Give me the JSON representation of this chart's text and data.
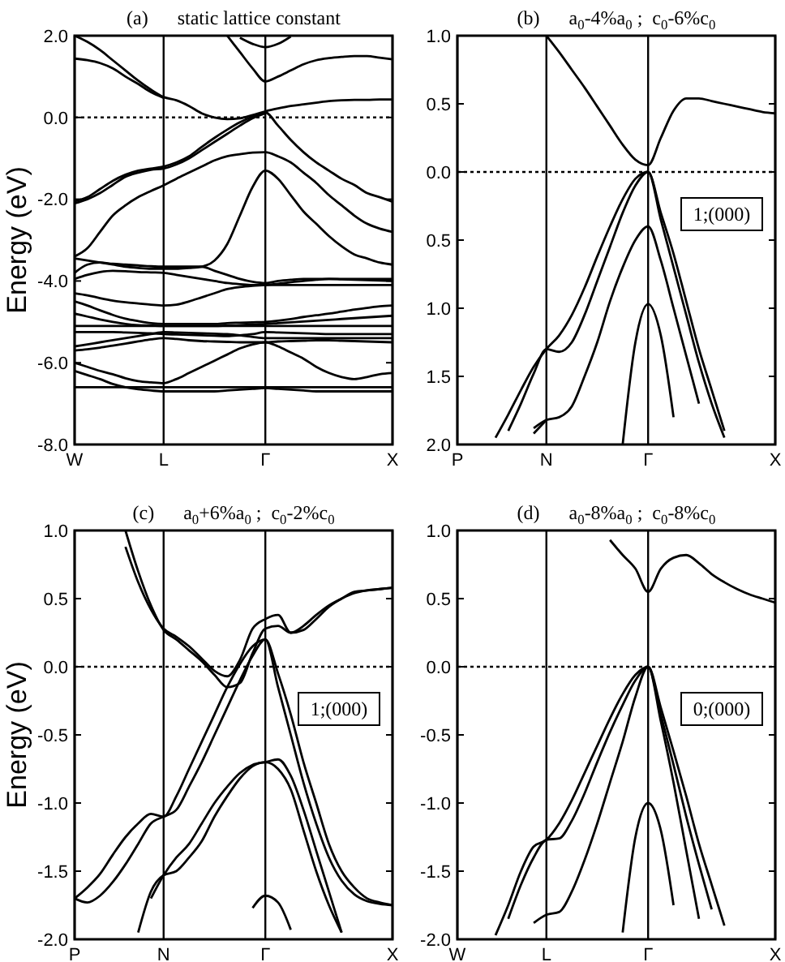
{
  "chart_data": [
    {
      "type": "line",
      "title": "(a)      static lattice constant",
      "ylabel": "Energy (eV)",
      "grid": "x",
      "categories": [
        "W",
        null,
        null,
        null,
        null,
        null,
        null,
        "L",
        null,
        null,
        null,
        null,
        null,
        null,
        null,
        "Γ",
        null,
        null,
        null,
        null,
        null,
        null,
        null,
        null,
        null,
        "X"
      ],
      "ylim": [
        -8,
        2
      ],
      "yticks": [
        {
          "value": 2,
          "label": "2.0"
        },
        {
          "value": 0,
          "label": "0.0"
        },
        {
          "value": -2,
          "label": "-2.0"
        },
        {
          "value": -4,
          "label": "-4.0"
        },
        {
          "value": -6,
          "label": "-6.0"
        },
        {
          "value": -8,
          "label": "-8.0"
        }
      ],
      "ref_lines": [
        {
          "axis": "y",
          "value": 0,
          "color": "#000000",
          "line_style": "dotted"
        }
      ],
      "series": [
        {
          "color": "#000000",
          "values": [
            2.0,
            1.85,
            1.65,
            1.4,
            1.15,
            0.9,
            0.68,
            0.5,
            0.42,
            0.28,
            0.1,
            0.0,
            -0.04,
            -0.02,
            0.06,
            0.15,
            0.22,
            0.28,
            0.32,
            0.36,
            0.4,
            0.42,
            0.43,
            0.43,
            0.44,
            0.44
          ]
        },
        {
          "color": "#000000",
          "values": [
            1.44,
            1.4,
            1.33,
            1.2,
            1.0,
            0.82,
            0.62,
            0.48,
            null,
            null,
            null,
            null,
            null,
            null,
            null,
            null,
            null,
            null,
            null,
            null,
            null,
            null,
            null,
            null,
            null,
            null
          ]
        },
        {
          "color": "#000000",
          "values": [
            null,
            null,
            null,
            null,
            null,
            null,
            null,
            null,
            null,
            null,
            null,
            null,
            2.0,
            1.6,
            1.2,
            0.88,
            1.0,
            1.15,
            1.3,
            1.4,
            1.45,
            1.48,
            1.5,
            1.5,
            1.46,
            1.42
          ]
        },
        {
          "color": "#000000",
          "values": [
            null,
            null,
            null,
            null,
            null,
            null,
            null,
            null,
            null,
            null,
            null,
            null,
            null,
            1.95,
            1.8,
            1.72,
            1.8,
            1.98,
            null,
            null,
            null,
            null,
            null,
            null,
            null,
            null
          ]
        },
        {
          "color": "#000000",
          "values": [
            -2.05,
            -1.95,
            -1.75,
            -1.55,
            -1.4,
            -1.3,
            -1.25,
            -1.2,
            -1.1,
            -0.95,
            -0.72,
            -0.5,
            -0.3,
            -0.12,
            0.02,
            0.12,
            -0.2,
            -0.55,
            -0.85,
            -1.1,
            -1.3,
            -1.5,
            -1.65,
            -1.85,
            -1.95,
            -2.06
          ]
        },
        {
          "color": "#000000",
          "values": [
            -2.1,
            -2.0,
            -1.85,
            -1.65,
            -1.45,
            -1.35,
            -1.28,
            -1.25,
            -1.15,
            -1.0,
            -0.8,
            -0.6,
            -0.4,
            -0.2,
            -0.02,
            0.1,
            null,
            null,
            null,
            null,
            null,
            null,
            null,
            null,
            null,
            null
          ]
        },
        {
          "color": "#000000",
          "values": [
            -3.4,
            -3.2,
            -2.8,
            -2.4,
            -2.15,
            -1.95,
            -1.8,
            -1.66,
            -1.5,
            -1.35,
            -1.2,
            -1.05,
            -0.95,
            -0.9,
            -0.86,
            -0.85,
            -0.95,
            -1.1,
            -1.35,
            -1.6,
            -1.9,
            -2.15,
            -2.4,
            -2.6,
            -2.72,
            -2.8
          ]
        },
        {
          "color": "#000000",
          "values": [
            -3.45,
            -3.5,
            -3.55,
            -3.6,
            -3.65,
            -3.68,
            -3.7,
            -3.7,
            -3.7,
            -3.68,
            -3.65,
            -3.5,
            -3.1,
            -2.4,
            -1.7,
            -1.3,
            -1.5,
            -1.9,
            -2.3,
            -2.6,
            -2.9,
            -3.15,
            -3.35,
            -3.45,
            -3.55,
            -3.6
          ]
        },
        {
          "color": "#000000",
          "values": [
            -3.8,
            -3.6,
            -3.55,
            -3.58,
            -3.6,
            -3.62,
            -3.64,
            -3.65,
            -3.65,
            -3.65,
            -3.65,
            -3.75,
            -3.85,
            -3.95,
            -4.02,
            -4.05,
            -4.0,
            -3.97,
            -3.95,
            -3.95,
            -3.95,
            -3.95,
            -3.95,
            -3.95,
            -3.95,
            -3.95
          ]
        },
        {
          "color": "#000000",
          "values": [
            -3.95,
            -3.85,
            -3.78,
            -3.75,
            -3.76,
            -3.78,
            -3.79,
            -3.8,
            -3.85,
            -3.9,
            -3.95,
            -4.0,
            -4.05,
            -4.08,
            -4.1,
            -4.1,
            -4.1,
            -4.1,
            -4.1,
            -4.1,
            -4.1,
            -4.1,
            -4.1,
            -4.1,
            -4.1,
            -4.1
          ]
        },
        {
          "color": "#000000",
          "values": [
            -4.3,
            -4.35,
            -4.42,
            -4.48,
            -4.52,
            -4.55,
            -4.58,
            -4.6,
            -4.58,
            -4.5,
            -4.4,
            -4.3,
            -4.2,
            -4.15,
            -4.12,
            -4.1,
            -4.07,
            -4.03,
            -4.0,
            -3.97,
            -3.95,
            -3.96,
            -3.97,
            -3.98,
            -3.99,
            -4.0
          ]
        },
        {
          "color": "#000000",
          "values": [
            -4.5,
            -4.6,
            -4.72,
            -4.83,
            -4.92,
            -4.98,
            -5.03,
            -5.05,
            -5.05,
            -5.05,
            -5.05,
            -5.05,
            -5.03,
            -5.02,
            -5.01,
            -5.0,
            -4.97,
            -4.93,
            -4.88,
            -4.84,
            -4.8,
            -4.75,
            -4.7,
            -4.66,
            -4.62,
            -4.6
          ]
        },
        {
          "color": "#000000",
          "values": [
            -4.8,
            -4.87,
            -4.94,
            -5.0,
            -5.05,
            -5.08,
            -5.09,
            -5.1,
            -5.1,
            -5.1,
            -5.1,
            -5.1,
            -5.09,
            -5.08,
            -5.06,
            -5.05,
            -5.03,
            -5.01,
            -4.99,
            -4.97,
            -4.95,
            -4.93,
            -4.91,
            -4.89,
            -4.87,
            -4.85
          ]
        },
        {
          "color": "#000000",
          "values": [
            -5.1,
            -5.1,
            -5.1,
            -5.1,
            -5.1,
            -5.1,
            -5.1,
            -5.1,
            -5.1,
            -5.1,
            -5.1,
            -5.1,
            -5.1,
            -5.1,
            -5.1,
            -5.1,
            -5.1,
            -5.1,
            -5.1,
            -5.1,
            -5.1,
            -5.1,
            -5.1,
            -5.1,
            -5.1,
            -5.1
          ]
        },
        {
          "color": "#000000",
          "values": [
            -5.25,
            -5.25,
            -5.25,
            -5.25,
            -5.26,
            -5.27,
            -5.28,
            -5.3,
            -5.31,
            -5.32,
            -5.33,
            -5.34,
            -5.35,
            -5.33,
            -5.3,
            -5.25,
            -5.26,
            -5.27,
            -5.28,
            -5.29,
            -5.3,
            -5.3,
            -5.3,
            -5.3,
            -5.3,
            -5.3
          ]
        },
        {
          "color": "#000000",
          "values": [
            -5.6,
            -5.55,
            -5.5,
            -5.45,
            -5.4,
            -5.35,
            -5.3,
            -5.25,
            -5.26,
            -5.27,
            -5.28,
            -5.29,
            -5.3,
            -5.33,
            -5.37,
            -5.4,
            -5.4,
            -5.4,
            -5.4,
            -5.4,
            -5.4,
            -5.4,
            -5.4,
            -5.4,
            -5.4,
            -5.4
          ]
        },
        {
          "color": "#000000",
          "values": [
            -5.7,
            -5.67,
            -5.63,
            -5.58,
            -5.53,
            -5.48,
            -5.43,
            -5.4,
            -5.42,
            -5.45,
            -5.47,
            -5.48,
            -5.49,
            -5.5,
            -5.5,
            -5.5,
            -5.48,
            -5.47,
            -5.46,
            -5.45,
            -5.45,
            -5.46,
            -5.47,
            -5.48,
            -5.49,
            -5.5
          ]
        },
        {
          "color": "#000000",
          "values": [
            -6.0,
            -6.1,
            -6.2,
            -6.28,
            -6.38,
            -6.45,
            -6.48,
            -6.5,
            -6.4,
            -6.25,
            -6.1,
            -5.95,
            -5.8,
            -5.65,
            -5.55,
            -5.5,
            -5.6,
            -5.75,
            -5.9,
            -6.1,
            -6.25,
            -6.35,
            -6.4,
            -6.35,
            -6.28,
            -6.25
          ]
        },
        {
          "color": "#000000",
          "values": [
            -6.2,
            -6.3,
            -6.4,
            -6.52,
            -6.6,
            -6.65,
            -6.68,
            -6.7,
            -6.7,
            -6.7,
            -6.7,
            -6.7,
            -6.68,
            -6.66,
            -6.64,
            -6.62,
            -6.64,
            -6.66,
            -6.68,
            -6.7,
            -6.7,
            -6.7,
            -6.7,
            -6.7,
            -6.7,
            -6.7
          ]
        },
        {
          "color": "#000000",
          "values": [
            -6.6,
            -6.6,
            -6.6,
            -6.6,
            -6.6,
            -6.6,
            -6.6,
            -6.6,
            -6.6,
            -6.6,
            -6.6,
            -6.6,
            -6.6,
            -6.6,
            -6.6,
            -6.6,
            -6.6,
            -6.6,
            -6.6,
            -6.6,
            -6.6,
            -6.6,
            -6.6,
            -6.6,
            -6.6,
            -6.6
          ]
        }
      ]
    },
    {
      "type": "line",
      "title": "(b)      a$_{0}$-4%a$_{0}$ ;  c$_{0}$-6%c$_{0}$",
      "grid": "x",
      "categories": [
        "P",
        null,
        null,
        null,
        null,
        null,
        null,
        "N",
        null,
        null,
        null,
        null,
        null,
        null,
        null,
        "Γ",
        null,
        null,
        null,
        null,
        null,
        null,
        null,
        null,
        null,
        "X"
      ],
      "ylim": [
        -2,
        1
      ],
      "yticks": [
        {
          "value": 1,
          "label": "1.0"
        },
        {
          "value": 0.5,
          "label": "0.5"
        },
        {
          "value": 0,
          "label": "0.0"
        },
        {
          "value": -0.5,
          "label": "0.5"
        },
        {
          "value": -1,
          "label": "1.0"
        },
        {
          "value": -1.5,
          "label": "1.5"
        },
        {
          "value": -2,
          "label": "2.0"
        }
      ],
      "ref_lines": [
        {
          "axis": "y",
          "value": 0,
          "color": "#000000",
          "line_style": "dotted"
        }
      ],
      "annotations": [
        "1;(000)"
      ],
      "series": [
        {
          "color": "#000000",
          "values": [
            null,
            null,
            null,
            null,
            null,
            null,
            null,
            1.0,
            0.88,
            0.75,
            0.62,
            0.48,
            0.34,
            0.2,
            0.09,
            0.05,
            0.25,
            0.45,
            0.54,
            0.54,
            0.52,
            0.5,
            0.48,
            0.46,
            0.44,
            0.43
          ]
        },
        {
          "color": "#000000",
          "values": [
            null,
            null,
            null,
            -1.95,
            -1.78,
            -1.6,
            -1.43,
            -1.3,
            -1.2,
            -1.05,
            -0.85,
            -0.62,
            -0.4,
            -0.2,
            -0.05,
            0,
            -0.3,
            -0.6,
            -0.95,
            -1.3,
            -1.6,
            -1.9,
            null,
            null,
            null,
            null
          ]
        },
        {
          "color": "#000000",
          "values": [
            null,
            null,
            null,
            null,
            -1.9,
            -1.7,
            -1.48,
            -1.3,
            -1.32,
            -1.25,
            -1.05,
            -0.8,
            -0.55,
            -0.3,
            -0.1,
            0,
            -0.35,
            -0.7,
            -1.05,
            -1.4,
            -1.7,
            -1.95,
            null,
            null,
            null,
            null
          ]
        },
        {
          "color": "#000000",
          "values": [
            null,
            null,
            null,
            null,
            null,
            null,
            -1.88,
            -1.82,
            -1.8,
            -1.72,
            -1.5,
            -1.25,
            -0.95,
            -0.7,
            -0.5,
            -0.4,
            -0.65,
            -1.0,
            -1.35,
            -1.7,
            null,
            null,
            null,
            null,
            null,
            null
          ]
        },
        {
          "color": "#000000",
          "values": [
            null,
            null,
            null,
            null,
            null,
            null,
            -1.92,
            -1.82,
            null,
            null,
            null,
            null,
            null,
            null,
            null,
            null,
            null,
            null,
            null,
            null,
            null,
            null,
            null,
            null,
            null,
            null
          ]
        },
        {
          "color": "#000000",
          "values": [
            null,
            null,
            null,
            null,
            null,
            null,
            null,
            null,
            null,
            null,
            null,
            null,
            null,
            -2.0,
            -1.25,
            -0.97,
            -1.2,
            -1.8,
            null,
            null,
            null,
            null,
            null,
            null,
            null,
            null
          ]
        }
      ]
    },
    {
      "type": "line",
      "title": "(c)      a$_{0}$+6%a$_{0}$ ;  c$_{0}$-2%c$_{0}$",
      "ylabel": "Energy (eV)",
      "grid": "x",
      "categories": [
        "P",
        null,
        null,
        null,
        null,
        null,
        null,
        "N",
        null,
        null,
        null,
        null,
        null,
        null,
        null,
        "Γ",
        null,
        null,
        null,
        null,
        null,
        null,
        null,
        null,
        null,
        "X"
      ],
      "ylim": [
        -2,
        1
      ],
      "yticks": [
        {
          "value": 1,
          "label": "1.0"
        },
        {
          "value": 0.5,
          "label": "0.5"
        },
        {
          "value": 0,
          "label": "0.0"
        },
        {
          "value": -0.5,
          "label": "-0.5"
        },
        {
          "value": -1,
          "label": "-1.0"
        },
        {
          "value": -1.5,
          "label": "-1.5"
        },
        {
          "value": -2,
          "label": "-2.0"
        }
      ],
      "ref_lines": [
        {
          "axis": "y",
          "value": 0,
          "color": "#000000",
          "line_style": "dotted"
        }
      ],
      "annotations": [
        "1;(000)"
      ],
      "series": [
        {
          "color": "#000000",
          "values": [
            null,
            null,
            null,
            null,
            0.88,
            0.62,
            0.42,
            0.28,
            0.22,
            0.15,
            0.06,
            -0.03,
            -0.07,
            0.05,
            0.28,
            0.35,
            0.38,
            0.25,
            0.3,
            0.38,
            0.45,
            0.5,
            0.54,
            0.56,
            0.57,
            0.58
          ]
        },
        {
          "color": "#000000",
          "values": [
            null,
            null,
            null,
            null,
            1.0,
            0.7,
            0.45,
            0.27,
            0.2,
            0.12,
            0.04,
            -0.06,
            -0.15,
            -0.12,
            0.1,
            0.28,
            0.3,
            0.25,
            0.27,
            0.35,
            0.44,
            0.5,
            0.55,
            0.56,
            0.57,
            0.58
          ]
        },
        {
          "color": "#000000",
          "values": [
            -1.7,
            -1.62,
            -1.52,
            -1.38,
            -1.25,
            -1.15,
            -1.08,
            -1.1,
            -0.95,
            -0.75,
            -0.55,
            -0.35,
            -0.15,
            0.02,
            0.15,
            0.2,
            -0.05,
            -0.35,
            -0.7,
            -1.0,
            -1.3,
            -1.5,
            -1.62,
            -1.7,
            -1.73,
            -1.75
          ]
        },
        {
          "color": "#000000",
          "values": [
            -1.7,
            -1.73,
            -1.68,
            -1.58,
            -1.45,
            -1.3,
            -1.15,
            -1.1,
            -1.05,
            -0.88,
            -0.7,
            -0.5,
            -0.3,
            -0.1,
            0.08,
            0.2,
            -0.15,
            -0.5,
            -0.85,
            -1.15,
            -1.4,
            -1.57,
            -1.67,
            -1.72,
            -1.74,
            -1.75
          ]
        },
        {
          "color": "#000000",
          "values": [
            null,
            null,
            null,
            null,
            null,
            -1.95,
            -1.65,
            -1.53,
            -1.5,
            -1.4,
            -1.28,
            -1.1,
            -0.95,
            -0.82,
            -0.73,
            -0.7,
            -0.75,
            -0.9,
            -1.2,
            -1.5,
            -1.75,
            -1.95,
            null,
            null,
            null,
            null
          ]
        },
        {
          "color": "#000000",
          "values": [
            null,
            null,
            null,
            null,
            null,
            null,
            -1.7,
            -1.53,
            -1.4,
            -1.3,
            -1.15,
            -1.0,
            -0.88,
            -0.78,
            -0.72,
            -0.7,
            -0.68,
            -0.8,
            -1.05,
            -1.35,
            -1.65,
            -1.95,
            null,
            null,
            null,
            null
          ]
        },
        {
          "color": "#000000",
          "values": [
            null,
            null,
            null,
            null,
            null,
            null,
            null,
            null,
            null,
            null,
            null,
            null,
            null,
            null,
            -1.77,
            -1.68,
            -1.73,
            -1.93,
            null,
            null,
            null,
            null,
            null,
            null,
            null,
            null
          ]
        }
      ]
    },
    {
      "type": "line",
      "title": "(d)      a$_{0}$-8%a$_{0}$ ;  c$_{0}$-8%c$_{0}$",
      "grid": "x",
      "categories": [
        "W",
        null,
        null,
        null,
        null,
        null,
        null,
        "L",
        null,
        null,
        null,
        null,
        null,
        null,
        null,
        "Γ",
        null,
        null,
        null,
        null,
        null,
        null,
        null,
        null,
        null,
        "X"
      ],
      "ylim": [
        -2,
        1
      ],
      "yticks": [
        {
          "value": 1,
          "label": "1.0"
        },
        {
          "value": 0.5,
          "label": "0.5"
        },
        {
          "value": 0,
          "label": "0.0"
        },
        {
          "value": -0.5,
          "label": "-0.5"
        },
        {
          "value": -1,
          "label": "-1.0"
        },
        {
          "value": -1.5,
          "label": "-1.5"
        },
        {
          "value": -2,
          "label": "-2.0"
        }
      ],
      "ref_lines": [
        {
          "axis": "y",
          "value": 0,
          "color": "#000000",
          "line_style": "dotted"
        }
      ],
      "annotations": [
        "0;(000)"
      ],
      "series": [
        {
          "color": "#000000",
          "values": [
            null,
            null,
            null,
            null,
            null,
            null,
            null,
            null,
            null,
            null,
            null,
            null,
            0.93,
            0.82,
            0.72,
            0.55,
            0.72,
            0.8,
            0.82,
            0.76,
            0.68,
            0.62,
            0.57,
            0.53,
            0.5,
            0.47
          ]
        },
        {
          "color": "#000000",
          "values": [
            null,
            null,
            null,
            -1.97,
            -1.75,
            -1.5,
            -1.32,
            -1.27,
            -1.15,
            -0.98,
            -0.78,
            -0.58,
            -0.38,
            -0.2,
            -0.06,
            0,
            -0.3,
            -0.62,
            -0.95,
            -1.3,
            -1.6,
            -1.9,
            null,
            null,
            null,
            null
          ]
        },
        {
          "color": "#000000",
          "values": [
            null,
            null,
            null,
            null,
            -1.85,
            -1.6,
            -1.4,
            -1.27,
            -1.26,
            -1.13,
            -0.93,
            -0.7,
            -0.48,
            -0.28,
            -0.1,
            0,
            -0.35,
            -0.72,
            -1.1,
            -1.45,
            -1.78,
            null,
            null,
            null,
            null,
            null
          ]
        },
        {
          "color": "#000000",
          "values": [
            null,
            null,
            null,
            null,
            null,
            null,
            -1.88,
            -1.82,
            -1.8,
            -1.65,
            -1.42,
            -1.15,
            -0.85,
            -0.55,
            -0.22,
            0,
            -0.4,
            -0.85,
            -1.35,
            -1.85,
            null,
            null,
            null,
            null,
            null,
            null
          ]
        },
        {
          "color": "#000000",
          "values": [
            null,
            null,
            null,
            null,
            null,
            null,
            null,
            null,
            null,
            null,
            null,
            null,
            null,
            -1.95,
            -1.25,
            -1.0,
            -1.2,
            -1.75,
            null,
            null,
            null,
            null,
            null,
            null,
            null,
            null
          ]
        }
      ]
    }
  ]
}
